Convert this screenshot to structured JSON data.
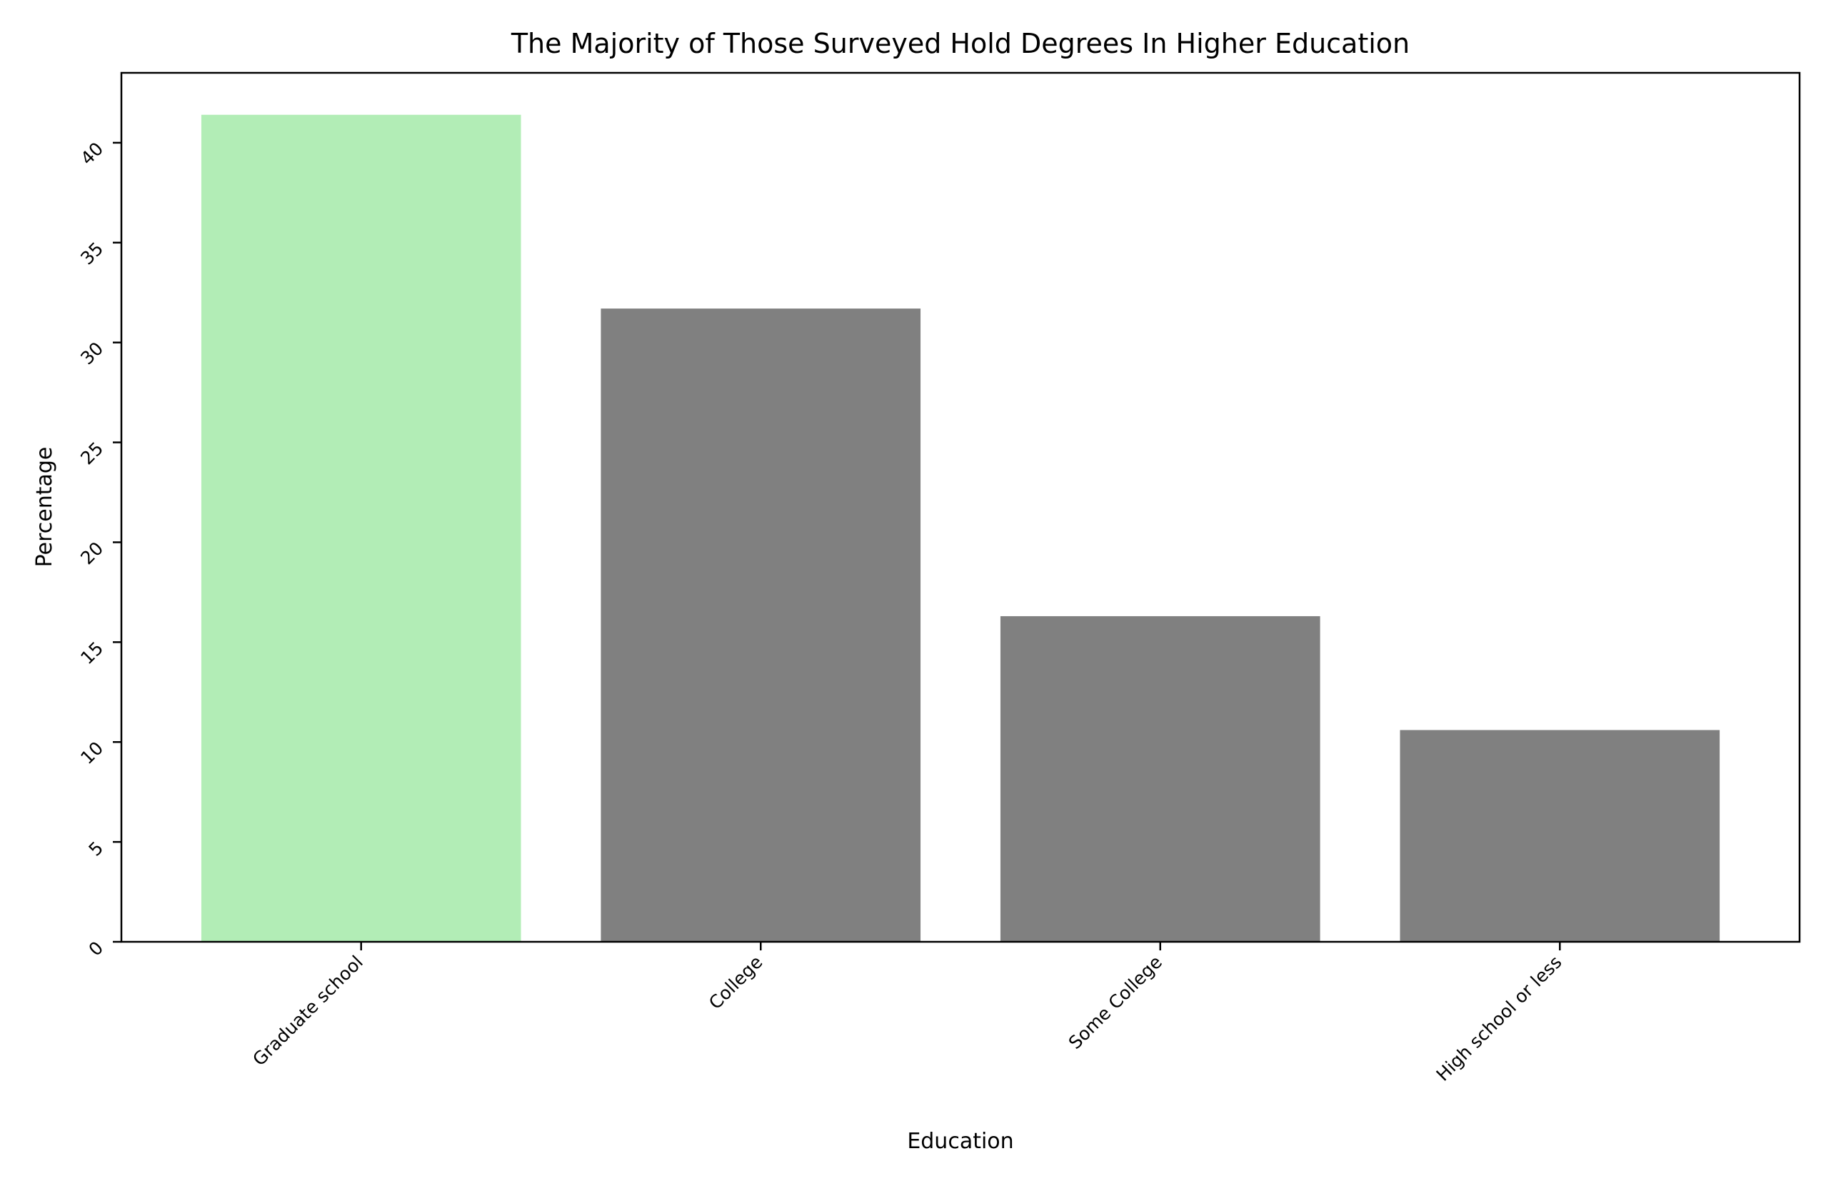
{
  "chart_data": {
    "type": "bar",
    "title": "The Majority of Those Surveyed Hold Degrees In Higher Education",
    "xlabel": "Education",
    "ylabel": "Percentage",
    "categories": [
      "Graduate school",
      "College",
      "Some College",
      "High school or less"
    ],
    "values": [
      41.4,
      31.7,
      16.3,
      10.6
    ],
    "colors": [
      "#b2edb6",
      "#808080",
      "#808080",
      "#808080"
    ],
    "highlight_color": "#b2edb6",
    "base_color": "#808080",
    "ylim": [
      0,
      43.5
    ],
    "yticks": [
      0,
      5,
      10,
      15,
      20,
      25,
      30,
      35,
      40
    ],
    "ytick_labels": [
      "0",
      "5",
      "10",
      "15",
      "20",
      "25",
      "30",
      "35",
      "40"
    ],
    "grid": false,
    "legend": "none"
  }
}
